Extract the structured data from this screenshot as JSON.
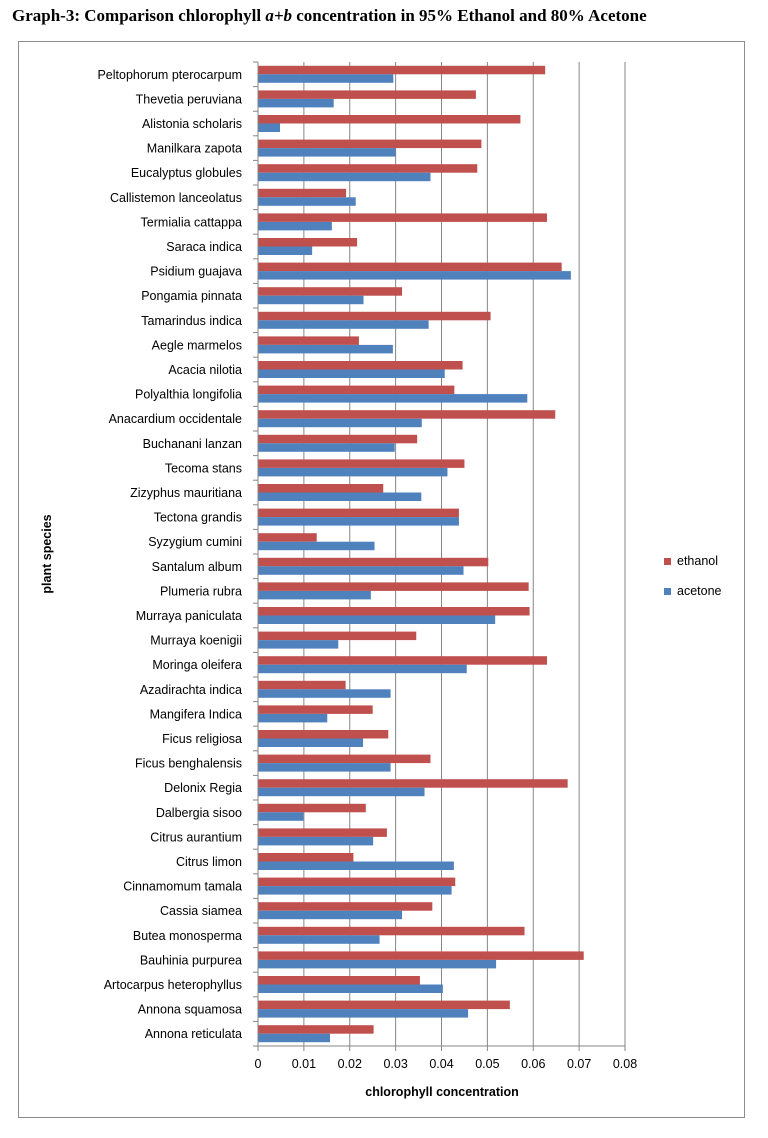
{
  "title": {
    "part1": "Graph-3: Comparison chlorophyll ",
    "italic": "a+b",
    "part2": " concentration in 95% Ethanol and 80% Acetone"
  },
  "chart_data": {
    "type": "bar",
    "orientation": "horizontal",
    "title": "Graph-3: Comparison chlorophyll a+b concentration in 95% Ethanol and 80% Acetone",
    "xlabel": "chlorophyll concentration",
    "ylabel": "plant species",
    "xlim": [
      0,
      0.08
    ],
    "xticks": [
      "0",
      "0.01",
      "0.02",
      "0.03",
      "0.04",
      "0.05",
      "0.06",
      "0.07",
      "0.08"
    ],
    "grid": "vertical",
    "legend_position": "right",
    "colors": {
      "ethanol": "#c0504d",
      "acetone": "#4f81bd"
    },
    "categories": [
      "Peltophorum pterocarpum",
      "Thevetia peruviana",
      "Alistonia scholaris",
      "Manilkara zapota",
      "Eucalyptus globules",
      "Callistemon lanceolatus",
      "Termialia cattappa",
      "Saraca indica",
      "Psidium guajava",
      "Pongamia pinnata",
      "Tamarindus indica",
      "Aegle marmelos",
      "Acacia nilotia",
      "Polyalthia longifolia",
      "Anacardium occidentale",
      "Buchanani lanzan",
      "Tecoma stans",
      "Zizyphus mauritiana",
      "Tectona grandis",
      "Syzygium cumini",
      "Santalum album",
      "Plumeria rubra",
      "Murraya paniculata",
      "Murraya koenigii",
      "Moringa oleifera",
      "Azadirachta indica",
      "Mangifera Indica",
      "Ficus religiosa",
      "Ficus benghalensis",
      "Delonix Regia",
      "Dalbergia sisoo",
      "Citrus aurantium",
      "Citrus limon",
      "Cinnamomum tamala",
      "Cassia siamea",
      "Butea monosperma",
      "Bauhinia purpurea",
      "Artocarpus heterophyllus",
      "Annona squamosa",
      "Annona reticulata"
    ],
    "series": [
      {
        "name": "ethanol",
        "values": [
          0.0626,
          0.0475,
          0.0572,
          0.0487,
          0.0478,
          0.0192,
          0.063,
          0.0216,
          0.0662,
          0.0314,
          0.0507,
          0.022,
          0.0446,
          0.0428,
          0.0648,
          0.0347,
          0.045,
          0.0273,
          0.0438,
          0.0128,
          0.0502,
          0.059,
          0.0592,
          0.0345,
          0.063,
          0.0191,
          0.025,
          0.0284,
          0.0376,
          0.0675,
          0.0235,
          0.0281,
          0.0208,
          0.043,
          0.038,
          0.0581,
          0.071,
          0.0353,
          0.0549,
          0.0252
        ]
      },
      {
        "name": "acetone",
        "values": [
          0.0295,
          0.0165,
          0.0048,
          0.03,
          0.0376,
          0.0213,
          0.0161,
          0.0118,
          0.0682,
          0.023,
          0.0372,
          0.0294,
          0.0407,
          0.0587,
          0.0357,
          0.0298,
          0.0413,
          0.0356,
          0.0438,
          0.0254,
          0.0448,
          0.0246,
          0.0517,
          0.0175,
          0.0455,
          0.0289,
          0.0151,
          0.0229,
          0.0289,
          0.0363,
          0.0099,
          0.0251,
          0.0427,
          0.0422,
          0.0314,
          0.0265,
          0.0519,
          0.0403,
          0.0458,
          0.0157
        ]
      }
    ]
  }
}
